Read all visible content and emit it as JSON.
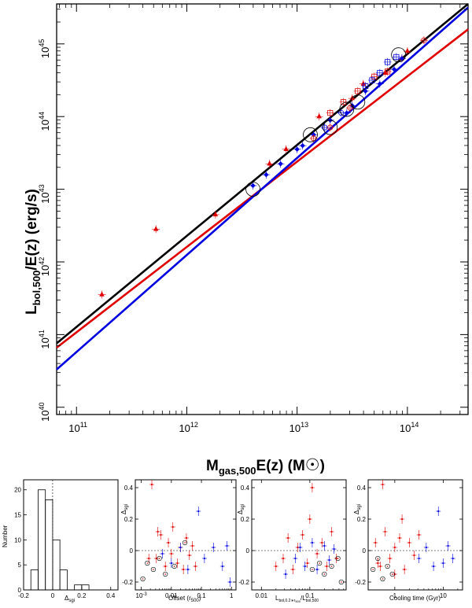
{
  "chart_data": [
    {
      "id": "main",
      "type": "scatter",
      "title": "",
      "xlabel_main": "M",
      "xlabel_sub": "gas,500",
      "xlabel_tail": "E(z)  (M",
      "xlabel_sun": "☉",
      "xlabel_close": ")",
      "ylabel_main": "L",
      "ylabel_sub": "bol,500",
      "ylabel_tail": "/E(z)  (erg/s)",
      "x_log_range": [
        10.82,
        14.55
      ],
      "y_log_range": [
        39.9,
        45.55
      ],
      "x_tick_bases": [
        "10",
        "10",
        "10",
        "10"
      ],
      "x_tick_exps": [
        "11",
        "12",
        "13",
        "14"
      ],
      "x_tick_values": [
        11,
        12,
        13,
        14
      ],
      "y_tick_bases": [
        "10",
        "10",
        "10",
        "10",
        "10",
        "10"
      ],
      "y_tick_exps": [
        "40",
        "41",
        "42",
        "43",
        "44",
        "45"
      ],
      "y_tick_values": [
        40,
        41,
        42,
        43,
        44,
        45
      ],
      "fit_lines": [
        {
          "name": "black fit",
          "color": "#000000",
          "x": [
            10.82,
            14.55
          ],
          "y": [
            40.88,
            45.55
          ]
        },
        {
          "name": "red fit",
          "color": "#e00000",
          "x": [
            10.82,
            14.55
          ],
          "y": [
            40.82,
            45.2
          ]
        },
        {
          "name": "blue fit",
          "color": "#0000e0",
          "x": [
            10.82,
            14.55
          ],
          "y": [
            40.52,
            45.5
          ]
        }
      ],
      "series": [
        {
          "name": "red triangles",
          "color": "#e00000",
          "marker": "triangle",
          "x": [
            11.23,
            11.72,
            12.26,
            12.75,
            12.9,
            13.2,
            13.5,
            13.6,
            13.8,
            13.95,
            14.0
          ],
          "y": [
            41.55,
            42.45,
            42.65,
            43.35,
            43.55,
            44.0,
            44.25,
            44.45,
            44.6,
            44.8,
            44.9
          ]
        },
        {
          "name": "blue diamonds",
          "color": "#0000e0",
          "marker": "diamond",
          "x": [
            12.6,
            12.72,
            12.85,
            13.0,
            13.05,
            13.15,
            13.3,
            13.45,
            13.5,
            13.62,
            13.75,
            13.88,
            13.95
          ],
          "y": [
            43.05,
            43.2,
            43.35,
            43.55,
            43.6,
            43.75,
            43.95,
            44.05,
            44.15,
            44.35,
            44.45,
            44.65,
            44.8
          ]
        },
        {
          "name": "red open squares",
          "color": "#e00000",
          "marker": "square",
          "x": [
            13.3,
            13.42,
            13.55,
            13.7,
            13.82
          ],
          "y": [
            44.05,
            44.2,
            44.35,
            44.55,
            44.62
          ]
        },
        {
          "name": "blue open squares",
          "color": "#0000e0",
          "marker": "square",
          "x": [
            13.62,
            13.68,
            13.75,
            13.82,
            13.9
          ],
          "y": [
            44.42,
            44.5,
            44.6,
            44.75,
            44.82
          ]
        },
        {
          "name": "red open circles",
          "color": "#e00000",
          "marker": "circle",
          "x": [
            13.15,
            13.3,
            13.48,
            14.15
          ],
          "y": [
            43.7,
            43.85,
            44.12,
            45.05
          ]
        },
        {
          "name": "blue open circles",
          "color": "#0000e0",
          "marker": "circle",
          "x": [
            13.25,
            13.4
          ],
          "y": [
            43.85,
            44.05
          ]
        }
      ],
      "highlighted_x": [
        12.6,
        13.12,
        13.3,
        13.45,
        13.55,
        13.92
      ],
      "highlighted_y": [
        43.0,
        43.75,
        43.85,
        44.1,
        44.2,
        44.85
      ]
    },
    {
      "id": "hist",
      "type": "bar",
      "xlabel": "Δ",
      "xlabel_sub": "sgi",
      "ylabel": "Number",
      "xlim": [
        -0.2,
        0.45
      ],
      "ylim": [
        0,
        22
      ],
      "bin_edges": [
        -0.15,
        -0.1,
        -0.05,
        0.0,
        0.05,
        0.1,
        0.15,
        0.2,
        0.25
      ],
      "counts": [
        4,
        20,
        18,
        10,
        4,
        0,
        1,
        1
      ],
      "x_ticks": [
        "-0.2",
        "0",
        "0.2",
        "0.4"
      ],
      "x_tick_values": [
        -0.2,
        0.0,
        0.2,
        0.4
      ],
      "y_ticks": [
        "0",
        "5",
        "10",
        "15",
        "20"
      ],
      "y_tick_values": [
        0,
        5,
        10,
        15,
        20
      ]
    },
    {
      "id": "offset",
      "type": "scatter",
      "xlabel": "Offset (r",
      "xlabel_sub": "500",
      "xlabel_close": ")",
      "ylabel": "Δ",
      "ylabel_sub": "sgi",
      "x_log_range": [
        -3.2,
        0.15
      ],
      "ylim": [
        -0.25,
        0.45
      ],
      "x_tick_labels": [
        "10",
        "0.01",
        "0.1",
        "1"
      ],
      "x_tick_exp": "-3",
      "x_tick_values": [
        -3,
        -2,
        -1,
        0
      ],
      "y_ticks": [
        "-0.2",
        "0",
        "0.2",
        "0.4"
      ],
      "y_tick_values": [
        -0.2,
        0.0,
        0.2,
        0.4
      ],
      "series": [
        {
          "name": "red",
          "color": "#e00000",
          "x": [
            -2.65,
            -2.5,
            -2.35,
            -2.2,
            -2.1,
            -2.0,
            -1.95,
            -1.8,
            -1.7,
            -1.6,
            -1.5,
            -1.4,
            -1.3,
            -1.2,
            -2.75,
            -2.45
          ],
          "y": [
            0.42,
            -0.05,
            0.1,
            -0.1,
            0.05,
            -0.02,
            0.15,
            -0.08,
            0.02,
            -0.12,
            0.08,
            -0.03,
            0.03,
            -0.1,
            -0.05,
            0.12
          ]
        },
        {
          "name": "blue",
          "color": "#0000e0",
          "x": [
            -2.3,
            -2.0,
            -1.7,
            -1.45,
            -1.1,
            -0.9,
            -0.6,
            -0.3,
            -0.15,
            -0.05
          ],
          "y": [
            -0.02,
            -0.08,
            0.02,
            -0.12,
            0.25,
            -0.05,
            0.02,
            -0.1,
            0.03,
            -0.2
          ]
        }
      ],
      "circled_x": [
        -2.95,
        -2.8,
        -2.6,
        -2.4,
        -2.2,
        -1.9,
        -1.55
      ],
      "circled_y": [
        -0.18,
        -0.08,
        -0.12,
        -0.05,
        -0.15,
        -0.1,
        0.05
      ]
    },
    {
      "id": "lumratio",
      "type": "scatter",
      "xlabel": "L",
      "xlabel_sub1": "bol,0.2∗r",
      "xlabel_sub2": "500",
      "xlabel_mid": "/L",
      "xlabel_sub3": "bol,500",
      "ylabel": "Δ",
      "ylabel_sub": "sgi",
      "x_log_range": [
        -2.2,
        -0.25
      ],
      "ylim": [
        -0.25,
        0.45
      ],
      "x_ticks": [
        "0.01",
        "0.1"
      ],
      "x_tick_values": [
        -2,
        -1
      ],
      "y_ticks": [
        "-0.2",
        "0",
        "0.2",
        "0.4"
      ],
      "y_tick_values": [
        -0.2,
        0.0,
        0.2,
        0.4
      ],
      "series": [
        {
          "name": "red",
          "color": "#e00000",
          "x": [
            -1.7,
            -1.55,
            -1.45,
            -1.35,
            -1.25,
            -1.15,
            -1.05,
            -0.95,
            -0.85,
            -0.75,
            -0.65,
            -0.55,
            -0.45,
            -1.0
          ],
          "y": [
            -0.1,
            -0.05,
            0.08,
            -0.12,
            0.02,
            0.1,
            -0.08,
            0.4,
            -0.02,
            0.05,
            -0.1,
            0.12,
            -0.05,
            0.2
          ]
        },
        {
          "name": "blue",
          "color": "#0000e0",
          "x": [
            -1.5,
            -1.3,
            -1.2,
            -1.1,
            -0.95,
            -0.85,
            -0.7,
            -0.6,
            -0.5
          ],
          "y": [
            -0.15,
            -0.05,
            0.02,
            -0.1,
            0.05,
            -0.12,
            0.03,
            -0.06,
            0.01
          ]
        }
      ],
      "circled_x": [
        -0.95,
        -0.8,
        -0.7,
        -0.55,
        -0.42,
        -0.35
      ],
      "circled_y": [
        -0.12,
        -0.08,
        -0.15,
        -0.1,
        -0.05,
        -0.2
      ]
    },
    {
      "id": "cooling",
      "type": "scatter",
      "xlabel": "Cooling time (Gyr)",
      "ylabel": "Δ",
      "ylabel_sub": "sgi",
      "x_log_range": [
        -0.55,
        1.4
      ],
      "ylim": [
        -0.25,
        0.45
      ],
      "x_ticks": [
        "1",
        "10"
      ],
      "x_tick_values": [
        0,
        1
      ],
      "y_ticks": [
        "-0.2",
        "0",
        "0.2",
        "0.4"
      ],
      "y_tick_values": [
        -0.2,
        0.0,
        0.2,
        0.4
      ],
      "series": [
        {
          "name": "red",
          "color": "#e00000",
          "x": [
            -0.4,
            -0.3,
            -0.2,
            -0.1,
            0.0,
            0.1,
            0.2,
            0.3,
            0.4,
            0.5,
            -0.25,
            0.0,
            0.15,
            -0.35
          ],
          "y": [
            0.05,
            -0.1,
            0.12,
            -0.05,
            0.02,
            0.08,
            -0.12,
            0.05,
            -0.03,
            0.1,
            0.42,
            -0.15,
            0.2,
            -0.08
          ]
        },
        {
          "name": "blue",
          "color": "#0000e0",
          "x": [
            0.5,
            0.65,
            0.8,
            0.9,
            1.0,
            1.1,
            1.2
          ],
          "y": [
            -0.05,
            0.02,
            -0.1,
            0.25,
            -0.08,
            0.03,
            -0.05
          ]
        }
      ],
      "circled_x": [
        -0.45,
        -0.35,
        -0.25,
        -0.15,
        -0.05
      ],
      "circled_y": [
        -0.12,
        -0.05,
        -0.18,
        -0.1,
        -0.15
      ]
    }
  ]
}
